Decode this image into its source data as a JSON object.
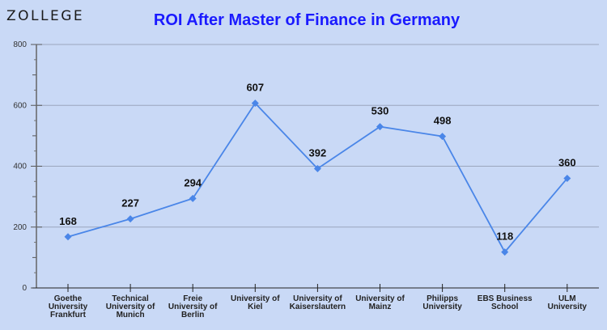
{
  "brand": {
    "logo_text": "ZOLLEGE"
  },
  "chart_data": {
    "type": "line",
    "title": "ROI After Master of Finance in Germany",
    "xlabel": "",
    "ylabel": "",
    "ylim": [
      0,
      800
    ],
    "yticks": [
      0,
      200,
      400,
      600,
      800
    ],
    "grid": true,
    "color": "#4a86e8",
    "categories": [
      [
        "Goethe",
        "University",
        "Frankfurt"
      ],
      [
        "Technical",
        "University of",
        "Munich"
      ],
      [
        "Freie",
        "University of",
        "Berlin"
      ],
      [
        "University of",
        "Kiel"
      ],
      [
        "University of",
        "Kaiserslautern"
      ],
      [
        "University of",
        "Mainz"
      ],
      [
        "Philipps",
        "University"
      ],
      [
        "EBS Business",
        "School"
      ],
      [
        "ULM",
        "University"
      ]
    ],
    "values": [
      168,
      227,
      294,
      607,
      392,
      530,
      498,
      118,
      360
    ]
  }
}
